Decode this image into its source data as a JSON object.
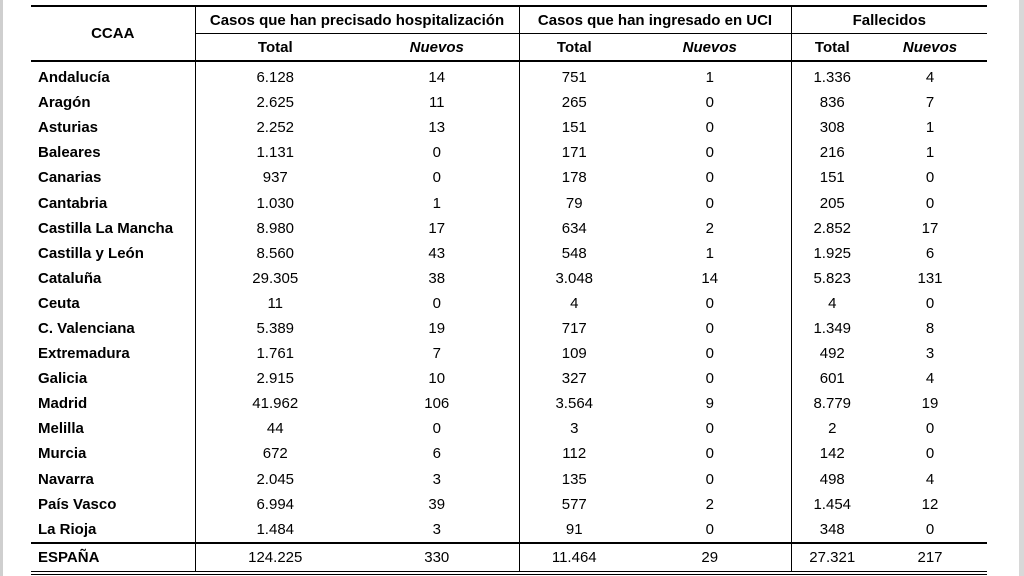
{
  "table": {
    "header": {
      "region": "CCAA",
      "groups": [
        "Casos que han precisado hospitalización",
        "Casos que han ingresado en UCI",
        "Fallecidos"
      ],
      "total": "Total",
      "nuevos": "Nuevos"
    },
    "rows": [
      {
        "name": "Andalucía",
        "h_total": "6.128",
        "h_new": "14",
        "u_total": "751",
        "u_new": "1",
        "f_total": "1.336",
        "f_new": "4"
      },
      {
        "name": "Aragón",
        "h_total": "2.625",
        "h_new": "11",
        "u_total": "265",
        "u_new": "0",
        "f_total": "836",
        "f_new": "7"
      },
      {
        "name": "Asturias",
        "h_total": "2.252",
        "h_new": "13",
        "u_total": "151",
        "u_new": "0",
        "f_total": "308",
        "f_new": "1"
      },
      {
        "name": "Baleares",
        "h_total": "1.131",
        "h_new": "0",
        "u_total": "171",
        "u_new": "0",
        "f_total": "216",
        "f_new": "1"
      },
      {
        "name": "Canarias",
        "h_total": "937",
        "h_new": "0",
        "u_total": "178",
        "u_new": "0",
        "f_total": "151",
        "f_new": "0"
      },
      {
        "name": "Cantabria",
        "h_total": "1.030",
        "h_new": "1",
        "u_total": "79",
        "u_new": "0",
        "f_total": "205",
        "f_new": "0"
      },
      {
        "name": "Castilla La Mancha",
        "h_total": "8.980",
        "h_new": "17",
        "u_total": "634",
        "u_new": "2",
        "f_total": "2.852",
        "f_new": "17"
      },
      {
        "name": "Castilla y León",
        "h_total": "8.560",
        "h_new": "43",
        "u_total": "548",
        "u_new": "1",
        "f_total": "1.925",
        "f_new": "6"
      },
      {
        "name": "Cataluña",
        "h_total": "29.305",
        "h_new": "38",
        "u_total": "3.048",
        "u_new": "14",
        "f_total": "5.823",
        "f_new": "131"
      },
      {
        "name": "Ceuta",
        "h_total": "11",
        "h_new": "0",
        "u_total": "4",
        "u_new": "0",
        "f_total": "4",
        "f_new": "0"
      },
      {
        "name": "C. Valenciana",
        "h_total": "5.389",
        "h_new": "19",
        "u_total": "717",
        "u_new": "0",
        "f_total": "1.349",
        "f_new": "8"
      },
      {
        "name": "Extremadura",
        "h_total": "1.761",
        "h_new": "7",
        "u_total": "109",
        "u_new": "0",
        "f_total": "492",
        "f_new": "3"
      },
      {
        "name": "Galicia",
        "h_total": "2.915",
        "h_new": "10",
        "u_total": "327",
        "u_new": "0",
        "f_total": "601",
        "f_new": "4"
      },
      {
        "name": "Madrid",
        "h_total": "41.962",
        "h_new": "106",
        "u_total": "3.564",
        "u_new": "9",
        "f_total": "8.779",
        "f_new": "19"
      },
      {
        "name": "Melilla",
        "h_total": "44",
        "h_new": "0",
        "u_total": "3",
        "u_new": "0",
        "f_total": "2",
        "f_new": "0"
      },
      {
        "name": "Murcia",
        "h_total": "672",
        "h_new": "6",
        "u_total": "112",
        "u_new": "0",
        "f_total": "142",
        "f_new": "0"
      },
      {
        "name": "Navarra",
        "h_total": "2.045",
        "h_new": "3",
        "u_total": "135",
        "u_new": "0",
        "f_total": "498",
        "f_new": "4"
      },
      {
        "name": "País Vasco",
        "h_total": "6.994",
        "h_new": "39",
        "u_total": "577",
        "u_new": "2",
        "f_total": "1.454",
        "f_new": "12"
      },
      {
        "name": "La Rioja",
        "h_total": "1.484",
        "h_new": "3",
        "u_total": "91",
        "u_new": "0",
        "f_total": "348",
        "f_new": "0"
      }
    ],
    "footer": {
      "name": "ESPAÑA",
      "h_total": "124.225",
      "h_new": "330",
      "u_total": "11.464",
      "u_new": "29",
      "f_total": "27.321",
      "f_new": "217"
    }
  }
}
